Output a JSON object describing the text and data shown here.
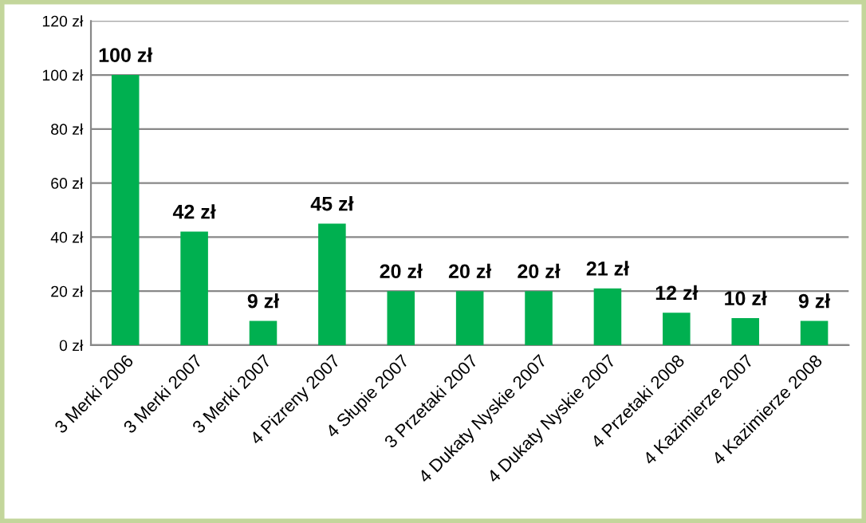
{
  "chart_data": {
    "type": "bar",
    "categories": [
      "3 Merki 2006",
      "3 Merki 2007",
      "3 Merki 2007",
      "4 Pizreny 2007",
      "4 Słupie 2007",
      "3 Przetaki 2007",
      "4 Dukaty Nyskie 2007",
      "4 Dukaty Nyskie 2007",
      "4 Przetaki 2008",
      "4 Kazimierze 2007",
      "4 Kazimierze 2008"
    ],
    "values": [
      100,
      42,
      9,
      45,
      20,
      20,
      20,
      21,
      12,
      10,
      9
    ],
    "value_labels": [
      "100 zł",
      "42 zł",
      "9 zł",
      "45 zł",
      "20 zł",
      "20 zł",
      "20 zł",
      "21 zł",
      "12 zł",
      "10 zł",
      "9 zł"
    ],
    "color": "#00b050",
    "ylim": [
      0,
      120
    ],
    "yticks": [
      {
        "value": 0,
        "label": "0 zł"
      },
      {
        "value": 20,
        "label": "20 zł"
      },
      {
        "value": 40,
        "label": "40 zł"
      },
      {
        "value": 60,
        "label": "60 zł"
      },
      {
        "value": 80,
        "label": "80 zł"
      },
      {
        "value": 100,
        "label": "100 zł"
      },
      {
        "value": 120,
        "label": "120 zł"
      }
    ],
    "grid": "y",
    "legend": false
  }
}
